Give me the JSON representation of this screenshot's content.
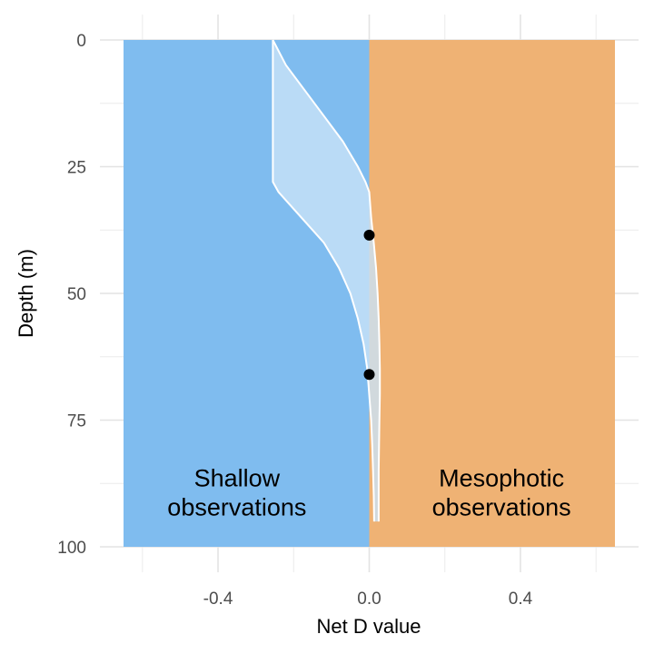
{
  "chart_data": {
    "type": "area",
    "title": "",
    "xlabel": "Net D value",
    "ylabel": "Depth (m)",
    "xlim": [
      -0.65,
      0.65
    ],
    "ylim": [
      0,
      100
    ],
    "y_reversed": true,
    "grid": true,
    "x_ticks": [
      {
        "value": -0.4,
        "label": "-0.4"
      },
      {
        "value": 0.0,
        "label": "0.0"
      },
      {
        "value": 0.4,
        "label": "0.4"
      }
    ],
    "y_ticks": [
      {
        "value": 0,
        "label": "0"
      },
      {
        "value": 25,
        "label": "25"
      },
      {
        "value": 50,
        "label": "50"
      },
      {
        "value": 75,
        "label": "75"
      },
      {
        "value": 100,
        "label": "100"
      }
    ],
    "regions": [
      {
        "name": "shallow",
        "label": [
          "Shallow",
          "observations"
        ],
        "x_range": [
          -0.65,
          0.0
        ],
        "color": "#7fbcef",
        "label_at": {
          "x": -0.35,
          "y": 92
        }
      },
      {
        "name": "mesophotic",
        "label": [
          "Mesophotic",
          "observations"
        ],
        "x_range": [
          0.0,
          0.65
        ],
        "color": "#efb274",
        "label_at": {
          "x": 0.35,
          "y": 92
        }
      }
    ],
    "band": {
      "fill": "#c9e2f7",
      "line_color": "#ffffff",
      "depth": [
        0,
        5,
        10,
        15,
        20,
        25,
        28,
        30,
        35,
        40,
        45,
        50,
        55,
        60,
        65,
        70,
        75,
        80,
        85,
        90,
        95
      ],
      "lower": [
        -0.255,
        -0.255,
        -0.255,
        -0.255,
        -0.255,
        -0.255,
        -0.255,
        -0.24,
        -0.18,
        -0.12,
        -0.08,
        -0.05,
        -0.03,
        -0.015,
        -0.005,
        0.0,
        0.005,
        0.008,
        0.01,
        0.012,
        0.013
      ],
      "upper": [
        -0.255,
        -0.22,
        -0.17,
        -0.12,
        -0.07,
        -0.03,
        -0.01,
        0.0,
        0.005,
        0.012,
        0.018,
        0.022,
        0.025,
        0.027,
        0.028,
        0.028,
        0.027,
        0.026,
        0.025,
        0.025,
        0.025
      ]
    },
    "points": [
      {
        "x": 0.0,
        "y": 38.5
      },
      {
        "x": 0.0,
        "y": 66
      }
    ]
  }
}
